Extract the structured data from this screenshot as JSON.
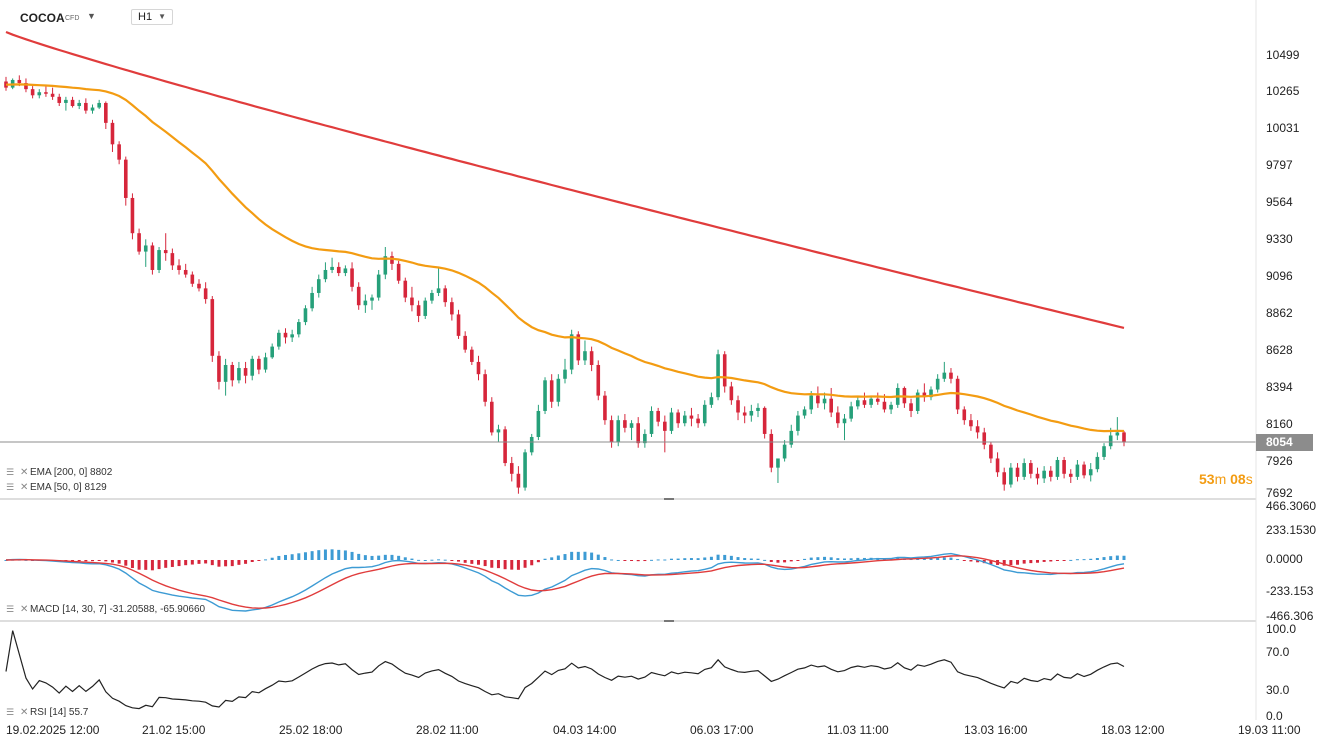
{
  "header": {
    "symbol": "COCOA",
    "instrument_type": "CFD",
    "timeframe": "H1"
  },
  "legend": {
    "ema200": "EMA [200, 0] 8802",
    "ema50": "EMA [50, 0] 8129",
    "macd": "MACD [14, 30, 7] -31.20588, -65.90660",
    "rsi": "RSI [14] 55.7"
  },
  "price_axis": [
    "10499",
    "10265",
    "10031",
    "9797",
    "9564",
    "9330",
    "9096",
    "8862",
    "8628",
    "8394",
    "8160",
    "7926",
    "7692"
  ],
  "macd_axis": [
    "466.3060",
    "233.1530",
    "0.0000",
    "-233.153",
    "-466.306"
  ],
  "rsi_axis": [
    "100.0",
    "70.0",
    "30.0",
    "0.0"
  ],
  "time_axis": [
    "19.02.2025 12:00",
    "21.02 15:00",
    "25.02 18:00",
    "28.02 11:00",
    "04.03 14:00",
    "06.03 17:00",
    "11.03 11:00",
    "13.03 16:00",
    "18.03 12:00",
    "19.03 11:00"
  ],
  "current_price": "8054",
  "countdown": {
    "minutes": "53",
    "m": "m",
    "seconds": "08",
    "s": "s"
  },
  "colors": {
    "up": "#26a07a",
    "down": "#d6263b",
    "ema200": "#e03c3c",
    "ema50": "#f39c12",
    "macd": "#3d9bd4",
    "signal": "#e03c3c",
    "rsi": "#222222"
  },
  "chart_data": {
    "type": "candlestick",
    "ylim": [
      7692,
      10733
    ],
    "candles": [
      [
        10410,
        10440,
        10350,
        10370
      ],
      [
        10370,
        10430,
        10360,
        10420
      ],
      [
        10420,
        10450,
        10380,
        10400
      ],
      [
        10400,
        10430,
        10340,
        10360
      ],
      [
        10360,
        10380,
        10300,
        10320
      ],
      [
        10320,
        10360,
        10300,
        10340
      ],
      [
        10340,
        10380,
        10310,
        10330
      ],
      [
        10330,
        10370,
        10290,
        10310
      ],
      [
        10310,
        10330,
        10250,
        10270
      ],
      [
        10270,
        10310,
        10220,
        10290
      ],
      [
        10290,
        10310,
        10240,
        10250
      ],
      [
        10250,
        10290,
        10230,
        10270
      ],
      [
        10270,
        10300,
        10200,
        10220
      ],
      [
        10220,
        10260,
        10200,
        10240
      ],
      [
        10240,
        10290,
        10230,
        10270
      ],
      [
        10270,
        10280,
        10100,
        10140
      ],
      [
        10140,
        10160,
        9950,
        10000
      ],
      [
        10000,
        10020,
        9870,
        9900
      ],
      [
        9900,
        9920,
        9600,
        9650
      ],
      [
        9650,
        9680,
        9380,
        9420
      ],
      [
        9420,
        9450,
        9280,
        9300
      ],
      [
        9300,
        9380,
        9200,
        9340
      ],
      [
        9340,
        9360,
        9150,
        9180
      ],
      [
        9180,
        9330,
        9160,
        9310
      ],
      [
        9310,
        9420,
        9240,
        9290
      ],
      [
        9290,
        9320,
        9180,
        9210
      ],
      [
        9210,
        9250,
        9150,
        9180
      ],
      [
        9180,
        9220,
        9130,
        9150
      ],
      [
        9150,
        9170,
        9070,
        9090
      ],
      [
        9090,
        9120,
        9040,
        9060
      ],
      [
        9060,
        9100,
        8960,
        8990
      ],
      [
        8990,
        9010,
        8580,
        8620
      ],
      [
        8620,
        8650,
        8400,
        8450
      ],
      [
        8450,
        8600,
        8360,
        8560
      ],
      [
        8560,
        8580,
        8420,
        8460
      ],
      [
        8460,
        8580,
        8440,
        8540
      ],
      [
        8540,
        8580,
        8440,
        8490
      ],
      [
        8490,
        8620,
        8460,
        8600
      ],
      [
        8600,
        8620,
        8500,
        8530
      ],
      [
        8530,
        8640,
        8510,
        8610
      ],
      [
        8610,
        8700,
        8600,
        8680
      ],
      [
        8680,
        8790,
        8660,
        8770
      ],
      [
        8770,
        8800,
        8700,
        8740
      ],
      [
        8740,
        8790,
        8710,
        8760
      ],
      [
        8760,
        8860,
        8740,
        8840
      ],
      [
        8840,
        8950,
        8820,
        8930
      ],
      [
        8930,
        9070,
        8910,
        9030
      ],
      [
        9030,
        9150,
        9000,
        9120
      ],
      [
        9120,
        9230,
        9100,
        9180
      ],
      [
        9180,
        9260,
        9160,
        9200
      ],
      [
        9200,
        9230,
        9140,
        9160
      ],
      [
        9160,
        9210,
        9140,
        9190
      ],
      [
        9190,
        9230,
        9040,
        9070
      ],
      [
        9070,
        9100,
        8920,
        8950
      ],
      [
        8950,
        9020,
        8900,
        8980
      ],
      [
        8980,
        9020,
        8920,
        9000
      ],
      [
        9000,
        9180,
        8980,
        9150
      ],
      [
        9150,
        9330,
        9120,
        9270
      ],
      [
        9270,
        9300,
        9180,
        9220
      ],
      [
        9220,
        9240,
        9090,
        9110
      ],
      [
        9110,
        9130,
        8970,
        9000
      ],
      [
        9000,
        9070,
        8910,
        8950
      ],
      [
        8950,
        8980,
        8840,
        8880
      ],
      [
        8880,
        9000,
        8860,
        8980
      ],
      [
        8980,
        9050,
        8960,
        9030
      ],
      [
        9030,
        9190,
        9010,
        9060
      ],
      [
        9060,
        9080,
        8940,
        8970
      ],
      [
        8970,
        9000,
        8850,
        8890
      ],
      [
        8890,
        8920,
        8730,
        8750
      ],
      [
        8750,
        8780,
        8640,
        8660
      ],
      [
        8660,
        8680,
        8560,
        8580
      ],
      [
        8580,
        8620,
        8460,
        8500
      ],
      [
        8500,
        8530,
        8290,
        8320
      ],
      [
        8320,
        8350,
        8100,
        8120
      ],
      [
        8120,
        8170,
        8060,
        8140
      ],
      [
        8140,
        8160,
        7900,
        7920
      ],
      [
        7920,
        7960,
        7800,
        7850
      ],
      [
        7850,
        7900,
        7720,
        7760
      ],
      [
        7760,
        8010,
        7740,
        7990
      ],
      [
        7990,
        8110,
        7970,
        8090
      ],
      [
        8090,
        8300,
        8070,
        8260
      ],
      [
        8260,
        8480,
        8240,
        8460
      ],
      [
        8460,
        8500,
        8280,
        8320
      ],
      [
        8320,
        8500,
        8290,
        8470
      ],
      [
        8470,
        8600,
        8440,
        8530
      ],
      [
        8530,
        8790,
        8500,
        8760
      ],
      [
        8760,
        8780,
        8560,
        8590
      ],
      [
        8590,
        8720,
        8560,
        8650
      ],
      [
        8650,
        8680,
        8520,
        8560
      ],
      [
        8560,
        8590,
        8330,
        8360
      ],
      [
        8360,
        8390,
        8170,
        8200
      ],
      [
        8200,
        8230,
        8020,
        8060
      ],
      [
        8060,
        8230,
        8030,
        8200
      ],
      [
        8200,
        8240,
        8120,
        8150
      ],
      [
        8150,
        8200,
        8070,
        8180
      ],
      [
        8180,
        8220,
        8020,
        8050
      ],
      [
        8050,
        8140,
        8020,
        8110
      ],
      [
        8110,
        8290,
        8090,
        8260
      ],
      [
        8260,
        8280,
        8160,
        8190
      ],
      [
        8190,
        8230,
        7990,
        8130
      ],
      [
        8130,
        8280,
        8110,
        8250
      ],
      [
        8250,
        8270,
        8150,
        8180
      ],
      [
        8180,
        8260,
        8160,
        8230
      ],
      [
        8230,
        8280,
        8160,
        8210
      ],
      [
        8210,
        8240,
        8150,
        8180
      ],
      [
        8180,
        8330,
        8160,
        8300
      ],
      [
        8300,
        8380,
        8280,
        8350
      ],
      [
        8350,
        8660,
        8330,
        8630
      ],
      [
        8630,
        8650,
        8380,
        8420
      ],
      [
        8420,
        8450,
        8300,
        8330
      ],
      [
        8330,
        8360,
        8200,
        8250
      ],
      [
        8250,
        8290,
        8180,
        8230
      ],
      [
        8230,
        8300,
        8190,
        8260
      ],
      [
        8260,
        8310,
        8220,
        8280
      ],
      [
        8280,
        8290,
        8080,
        8110
      ],
      [
        8110,
        8140,
        7860,
        7890
      ],
      [
        7890,
        7930,
        7790,
        7950
      ],
      [
        7950,
        8070,
        7930,
        8040
      ],
      [
        8040,
        8170,
        8020,
        8130
      ],
      [
        8130,
        8260,
        8100,
        8230
      ],
      [
        8230,
        8290,
        8210,
        8270
      ],
      [
        8270,
        8390,
        8240,
        8360
      ],
      [
        8360,
        8420,
        8280,
        8310
      ],
      [
        8310,
        8380,
        8270,
        8340
      ],
      [
        8340,
        8410,
        8220,
        8250
      ],
      [
        8250,
        8290,
        8150,
        8180
      ],
      [
        8180,
        8240,
        8070,
        8210
      ],
      [
        8210,
        8320,
        8190,
        8290
      ],
      [
        8290,
        8350,
        8270,
        8330
      ],
      [
        8330,
        8380,
        8280,
        8300
      ],
      [
        8300,
        8360,
        8280,
        8340
      ],
      [
        8340,
        8380,
        8300,
        8320
      ],
      [
        8320,
        8370,
        8250,
        8270
      ],
      [
        8270,
        8320,
        8240,
        8300
      ],
      [
        8300,
        8440,
        8280,
        8410
      ],
      [
        8410,
        8420,
        8280,
        8310
      ],
      [
        8310,
        8340,
        8220,
        8260
      ],
      [
        8260,
        8400,
        8240,
        8380
      ],
      [
        8380,
        8440,
        8320,
        8350
      ],
      [
        8350,
        8420,
        8330,
        8400
      ],
      [
        8400,
        8500,
        8380,
        8470
      ],
      [
        8470,
        8580,
        8450,
        8510
      ],
      [
        8510,
        8540,
        8440,
        8470
      ],
      [
        8470,
        8490,
        8240,
        8270
      ],
      [
        8270,
        8290,
        8170,
        8200
      ],
      [
        8200,
        8240,
        8130,
        8160
      ],
      [
        8160,
        8200,
        8080,
        8120
      ],
      [
        8120,
        8150,
        8010,
        8040
      ],
      [
        8040,
        8060,
        7920,
        7950
      ],
      [
        7950,
        7990,
        7830,
        7860
      ],
      [
        7860,
        7890,
        7740,
        7780
      ],
      [
        7780,
        7920,
        7760,
        7890
      ],
      [
        7890,
        7920,
        7800,
        7830
      ],
      [
        7830,
        7950,
        7810,
        7920
      ],
      [
        7920,
        7940,
        7820,
        7850
      ],
      [
        7850,
        7890,
        7780,
        7820
      ],
      [
        7820,
        7900,
        7790,
        7870
      ],
      [
        7870,
        7900,
        7800,
        7830
      ],
      [
        7830,
        7960,
        7810,
        7940
      ],
      [
        7940,
        7960,
        7820,
        7850
      ],
      [
        7850,
        7880,
        7790,
        7830
      ],
      [
        7830,
        7940,
        7810,
        7910
      ],
      [
        7910,
        7930,
        7820,
        7840
      ],
      [
        7840,
        7920,
        7800,
        7880
      ],
      [
        7880,
        7990,
        7860,
        7960
      ],
      [
        7960,
        8050,
        7940,
        8030
      ],
      [
        8030,
        8150,
        8010,
        8100
      ],
      [
        8100,
        8220,
        8070,
        8120
      ],
      [
        8120,
        8130,
        8030,
        8054
      ]
    ],
    "ema200_start": 10733,
    "ema200_end": 8802,
    "ema50_end": 8129,
    "macd": {
      "ylim": [
        -466.306,
        466.306
      ],
      "macd_last": -31.20588,
      "signal_last": -65.9066
    },
    "rsi": {
      "ylim": [
        0,
        100
      ],
      "last": 55.7,
      "levels": [
        30,
        70
      ]
    }
  }
}
